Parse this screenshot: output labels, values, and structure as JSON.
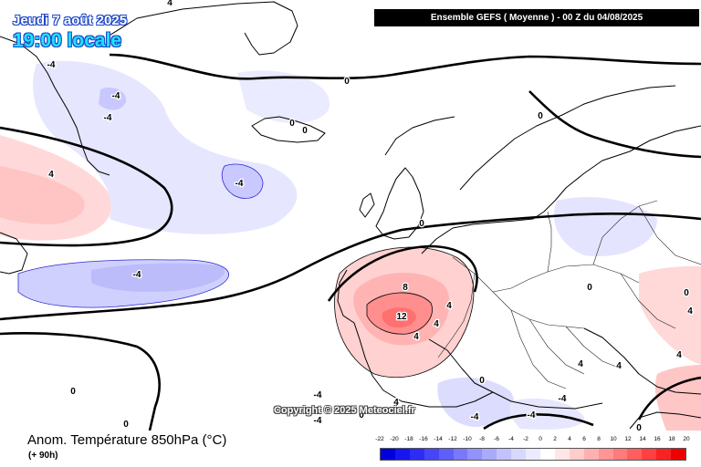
{
  "header": {
    "date_line": "Jeudi 7 août 2025",
    "time_line": "19:00 locale",
    "model_line": "Ensemble GEFS  ( Moyenne )  -  00 Z du 04/08/2025"
  },
  "footer": {
    "variable": "Anom. Température 850hPa (°C)",
    "lead_time": "(+ 90h)",
    "copyright": "Copyright © 2025 Meteociel.fr"
  },
  "legend": {
    "ticks": [
      "-22",
      "-20",
      "-18",
      "-16",
      "-14",
      "-12",
      "-10",
      "-8",
      "-6",
      "-4",
      "-2",
      "0",
      "2",
      "4",
      "6",
      "8",
      "10",
      "12",
      "14",
      "16",
      "18",
      "20"
    ],
    "colors": [
      "#0000dd",
      "#1616ee",
      "#2c2cf5",
      "#4646f8",
      "#5e5efa",
      "#7878fb",
      "#9292fc",
      "#aaaafd",
      "#c2c2fe",
      "#d8d8ff",
      "#ebebff",
      "#ffffff",
      "#ffe6e6",
      "#ffcccc",
      "#ffb0b0",
      "#ff9595",
      "#ff7a7a",
      "#ff5e5e",
      "#ff4040",
      "#f82222",
      "#ee0000"
    ]
  },
  "map": {
    "contour_labels": [
      "4",
      "-4",
      "-4",
      "0",
      "0",
      "0",
      "-4",
      "4",
      "-4",
      "-4",
      "0",
      "-4",
      "0",
      "0",
      "0",
      "8",
      "12",
      "4",
      "4",
      "4",
      "4",
      "0",
      "0",
      "0",
      "-4",
      "-4",
      "-4",
      "-4",
      "0",
      "0",
      "4",
      "4",
      "4",
      "4"
    ]
  }
}
